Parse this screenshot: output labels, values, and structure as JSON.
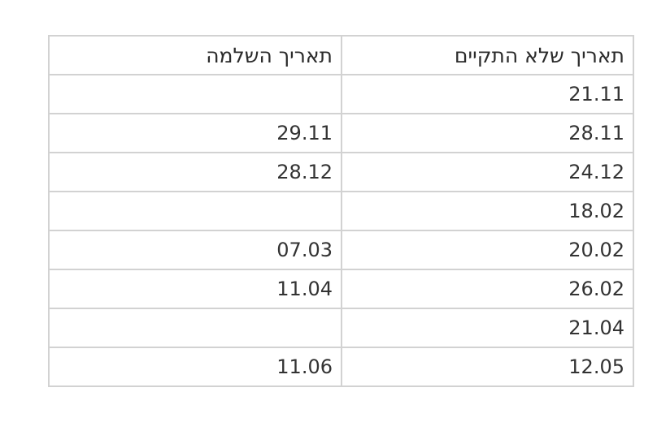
{
  "table": {
    "headers": [
      "תאריך שלא התקיים",
      "תאריך השלמה"
    ],
    "rows": [
      [
        "21.11",
        ""
      ],
      [
        "28.11",
        "29.11"
      ],
      [
        "24.12",
        "28.12"
      ],
      [
        "18.02",
        ""
      ],
      [
        "20.02",
        "07.03"
      ],
      [
        "26.02",
        "11.04"
      ],
      [
        "21.04",
        ""
      ],
      [
        "12.05",
        "11.06"
      ]
    ]
  }
}
